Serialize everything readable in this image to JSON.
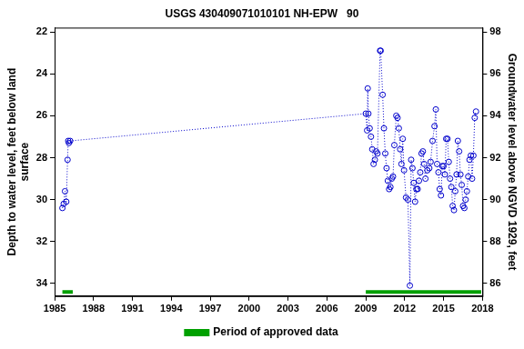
{
  "chart_data": {
    "type": "scatter",
    "title": "USGS 430409071010101 NH-EPW   90",
    "y_label": [
      "Depth to water level, feet below land",
      "surface"
    ],
    "y2_label": "Groundwater level above NGVD 1929, feet",
    "xlim": [
      1985,
      2018
    ],
    "xticks": [
      1985,
      1988,
      1991,
      1994,
      1997,
      2000,
      2003,
      2006,
      2009,
      2012,
      2015,
      2018
    ],
    "ylim": [
      34.6,
      21.8
    ],
    "yticks": [
      22,
      24,
      26,
      28,
      30,
      32,
      34
    ],
    "y2lim": [
      85.4,
      98.2
    ],
    "y2ticks": [
      86,
      88,
      90,
      92,
      94,
      96,
      98
    ],
    "grid": false,
    "legend": "bottom",
    "series": [
      {
        "color": "#0000cc",
        "marker": "circle",
        "line_style": "dotted",
        "x": [
          1985.6,
          1985.7,
          1985.8,
          1985.9,
          1986.0,
          1986.05,
          1986.1,
          1986.2,
          2009.0,
          2009.1,
          2009.15,
          2009.2,
          2009.3,
          2009.4,
          2009.5,
          2009.6,
          2009.7,
          2009.8,
          2009.9,
          2010.1,
          2010.15,
          2010.3,
          2010.4,
          2010.5,
          2010.6,
          2010.7,
          2010.8,
          2010.9,
          2011.0,
          2011.1,
          2011.2,
          2011.35,
          2011.45,
          2011.55,
          2011.65,
          2011.75,
          2011.85,
          2011.95,
          2012.1,
          2012.25,
          2012.4,
          2012.5,
          2012.6,
          2012.7,
          2012.8,
          2012.9,
          2013.0,
          2013.1,
          2013.2,
          2013.3,
          2013.4,
          2013.5,
          2013.6,
          2013.75,
          2013.9,
          2014.0,
          2014.15,
          2014.3,
          2014.4,
          2014.5,
          2014.6,
          2014.7,
          2014.8,
          2014.9,
          2015.0,
          2015.1,
          2015.2,
          2015.3,
          2015.4,
          2015.5,
          2015.6,
          2015.7,
          2015.8,
          2015.9,
          2016.0,
          2016.1,
          2016.2,
          2016.3,
          2016.4,
          2016.5,
          2016.6,
          2016.7,
          2016.8,
          2016.9,
          2017.0,
          2017.1,
          2017.2,
          2017.3,
          2017.4,
          2017.5
        ],
        "values": [
          30.4,
          30.2,
          29.6,
          30.1,
          28.1,
          27.2,
          27.3,
          27.2,
          25.9,
          26.7,
          24.7,
          25.9,
          26.6,
          27.0,
          27.6,
          28.3,
          28.1,
          27.7,
          27.8,
          22.9,
          22.9,
          25.0,
          26.6,
          27.8,
          28.5,
          29.1,
          29.5,
          29.4,
          29.0,
          28.9,
          27.4,
          26.0,
          26.1,
          26.6,
          27.6,
          28.3,
          27.1,
          28.6,
          29.9,
          30.0,
          34.1,
          28.1,
          28.5,
          29.2,
          30.1,
          29.5,
          29.5,
          29.1,
          28.7,
          27.8,
          27.7,
          28.3,
          29.0,
          28.6,
          28.5,
          28.2,
          27.2,
          26.5,
          25.7,
          28.3,
          28.7,
          29.5,
          29.8,
          28.4,
          28.4,
          28.8,
          27.1,
          27.1,
          28.2,
          29.0,
          29.4,
          30.3,
          30.5,
          29.6,
          28.8,
          27.2,
          27.7,
          28.8,
          29.3,
          30.3,
          30.4,
          30.0,
          29.6,
          28.9,
          28.1,
          27.9,
          29.0,
          27.9,
          26.1,
          25.8
        ]
      }
    ],
    "approved_periods": {
      "name": "Period of approved data",
      "color": "#00a000",
      "y": 34.4,
      "ranges": [
        [
          1985.6,
          1986.4
        ],
        [
          2009.0,
          2017.9
        ]
      ]
    }
  }
}
